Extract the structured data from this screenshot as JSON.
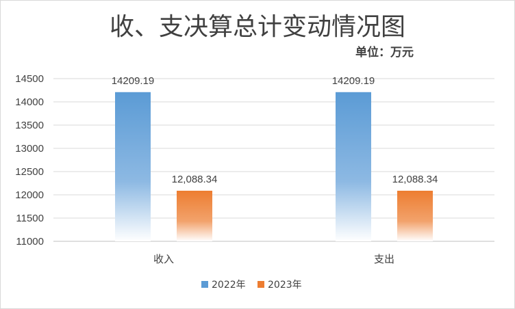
{
  "chart_data": {
    "type": "bar",
    "title": "收、支决算总计变动情况图",
    "subtitle": "单位：万元",
    "categories": [
      "收入",
      "支出"
    ],
    "series": [
      {
        "name": "2022年",
        "values": [
          14209.19,
          14209.19
        ],
        "labels": [
          "14209.19",
          "14209.19"
        ],
        "color": "#5b9bd5"
      },
      {
        "name": "2023年",
        "values": [
          12088.34,
          12088.34
        ],
        "labels": [
          "12,088.34",
          "12,088.34"
        ],
        "color": "#ed7d31"
      }
    ],
    "ylim": [
      11000,
      14500
    ],
    "yticks": [
      11000,
      11500,
      12000,
      12500,
      13000,
      13500,
      14000,
      14500
    ],
    "grid": true,
    "legend": "bottom"
  }
}
